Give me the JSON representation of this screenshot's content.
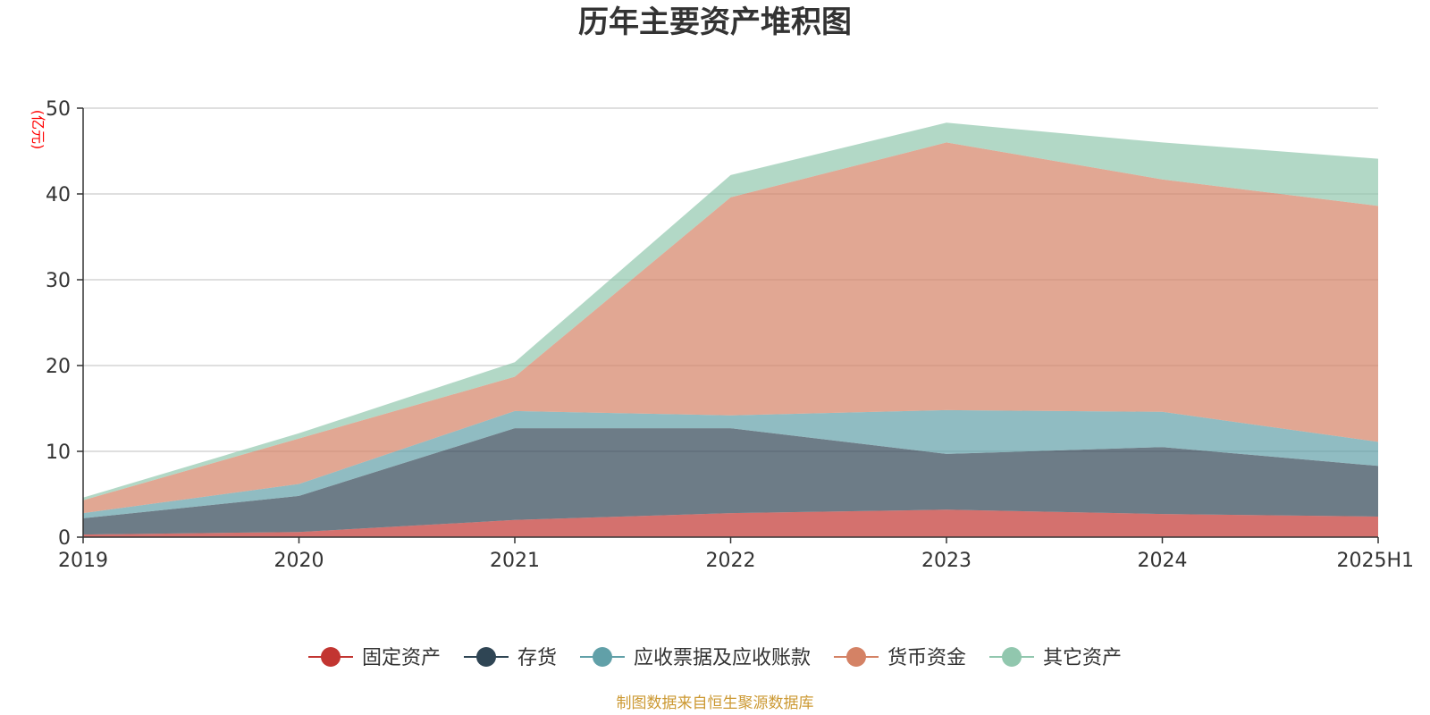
{
  "chart_data": {
    "type": "area",
    "stacked": true,
    "title": "历年主要资产堆积图",
    "y_unit": "(亿元)",
    "categories": [
      "2019",
      "2020",
      "2021",
      "2022",
      "2023",
      "2024",
      "2025H1"
    ],
    "ylim": [
      0,
      50
    ],
    "yticks": [
      0,
      10,
      20,
      30,
      40,
      50
    ],
    "grid": true,
    "legend_position": "bottom-center",
    "series": [
      {
        "name": "固定资产",
        "color": "#c23531",
        "values": [
          0.3,
          0.6,
          2.0,
          2.8,
          3.2,
          2.7,
          2.4
        ]
      },
      {
        "name": "存货",
        "color": "#2f4554",
        "values": [
          1.9,
          4.2,
          10.7,
          9.9,
          6.5,
          7.8,
          5.9
        ]
      },
      {
        "name": "应收票据及应收账款",
        "color": "#61a0a8",
        "values": [
          0.6,
          1.4,
          2.0,
          1.5,
          5.1,
          4.1,
          2.8
        ]
      },
      {
        "name": "货币资金",
        "color": "#d48265",
        "values": [
          1.5,
          5.3,
          4.0,
          25.4,
          31.2,
          27.1,
          27.5
        ]
      },
      {
        "name": "其它资产",
        "color": "#91c7ae",
        "values": [
          0.3,
          0.6,
          1.7,
          2.6,
          2.3,
          4.3,
          5.5
        ]
      }
    ]
  },
  "footer": {
    "source_text": "制图数据来自恒生聚源数据库"
  }
}
